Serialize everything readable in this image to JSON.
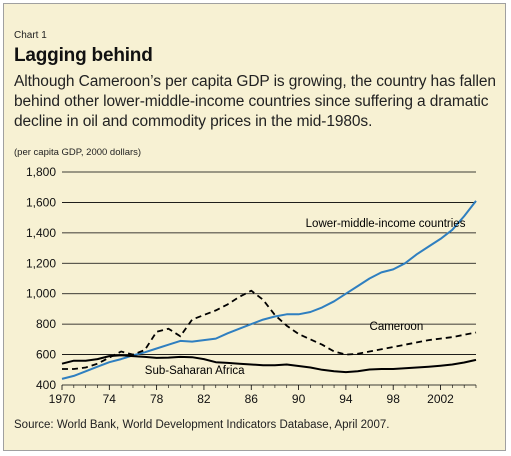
{
  "chart_label": "Chart 1",
  "title": "Lagging behind",
  "subtitle": "Although Cameroon’s per capita GDP is growing, the country has fallen behind other lower-middle-income countries since suffering a dramatic decline in oil and commodity prices in the mid-1980s.",
  "units": "(per capita GDP, 2000 dollars)",
  "source": "Source: World Bank, World Development Indicators Database, April 2007.",
  "colors": {
    "background": "#f7f1d3",
    "lmic": "#2f7fc0",
    "cameroon": "#000000",
    "ssa": "#000000"
  },
  "chart_data": {
    "type": "line",
    "xlim": [
      1970,
      2005
    ],
    "ylim": [
      400,
      1800
    ],
    "xticks": [
      1970,
      1974,
      1978,
      1982,
      1986,
      1990,
      1994,
      1998,
      2002
    ],
    "xtick_labels": [
      "1970",
      "74",
      "78",
      "82",
      "86",
      "90",
      "94",
      "98",
      "2002"
    ],
    "yticks": [
      400,
      600,
      800,
      1000,
      1200,
      1400,
      1600,
      1800
    ],
    "ytick_labels": [
      "400",
      "600",
      "800",
      "1,000",
      "1,200",
      "1,400",
      "1,600",
      "1,800"
    ],
    "grid": "horizontal",
    "series": [
      {
        "name": "Lower-middle-income countries",
        "style": "solid",
        "color": "#2f7fc0",
        "x": [
          1970,
          1971,
          1972,
          1973,
          1974,
          1975,
          1976,
          1977,
          1978,
          1979,
          1980,
          1981,
          1982,
          1983,
          1984,
          1985,
          1986,
          1987,
          1988,
          1989,
          1990,
          1991,
          1992,
          1993,
          1994,
          1995,
          1996,
          1997,
          1998,
          1999,
          2000,
          2001,
          2002,
          2003,
          2004,
          2005
        ],
        "y": [
          440,
          460,
          490,
          520,
          550,
          570,
          595,
          615,
          640,
          665,
          690,
          685,
          695,
          705,
          740,
          770,
          800,
          830,
          850,
          865,
          865,
          880,
          910,
          950,
          1000,
          1050,
          1100,
          1140,
          1160,
          1200,
          1260,
          1310,
          1360,
          1420,
          1510,
          1610
        ]
      },
      {
        "name": "Cameroon",
        "style": "dashed",
        "color": "#000000",
        "x": [
          1970,
          1971,
          1972,
          1973,
          1974,
          1975,
          1976,
          1977,
          1978,
          1979,
          1980,
          1981,
          1982,
          1983,
          1984,
          1985,
          1986,
          1987,
          1988,
          1989,
          1990,
          1991,
          1992,
          1993,
          1994,
          1995,
          1996,
          1997,
          1998,
          1999,
          2000,
          2001,
          2002,
          2003,
          2004,
          2005
        ],
        "y": [
          505,
          505,
          515,
          540,
          580,
          620,
          600,
          630,
          750,
          770,
          720,
          830,
          860,
          890,
          930,
          980,
          1020,
          960,
          860,
          790,
          735,
          700,
          665,
          620,
          600,
          605,
          620,
          635,
          650,
          665,
          680,
          695,
          705,
          715,
          730,
          745
        ]
      },
      {
        "name": "Sub-Saharan Africa",
        "style": "solid",
        "color": "#000000",
        "x": [
          1970,
          1971,
          1972,
          1973,
          1974,
          1975,
          1976,
          1977,
          1978,
          1979,
          1980,
          1981,
          1982,
          1983,
          1984,
          1985,
          1986,
          1987,
          1988,
          1989,
          1990,
          1991,
          1992,
          1993,
          1994,
          1995,
          1996,
          1997,
          1998,
          1999,
          2000,
          2001,
          2002,
          2003,
          2004,
          2005
        ],
        "y": [
          540,
          560,
          560,
          570,
          590,
          595,
          590,
          585,
          578,
          580,
          585,
          583,
          570,
          550,
          545,
          540,
          535,
          530,
          530,
          535,
          525,
          515,
          500,
          490,
          485,
          490,
          502,
          505,
          505,
          510,
          515,
          520,
          527,
          535,
          548,
          565
        ]
      }
    ],
    "annotations": [
      {
        "text": "Lower-middle-income countries",
        "x": 1990.6,
        "y": 1440,
        "color": "#000000"
      },
      {
        "text": "Cameroon",
        "x": 1996,
        "y": 760,
        "color": "#000000"
      },
      {
        "text": "Sub-Saharan Africa",
        "x": 1977,
        "y": 472,
        "color": "#000000"
      }
    ]
  }
}
